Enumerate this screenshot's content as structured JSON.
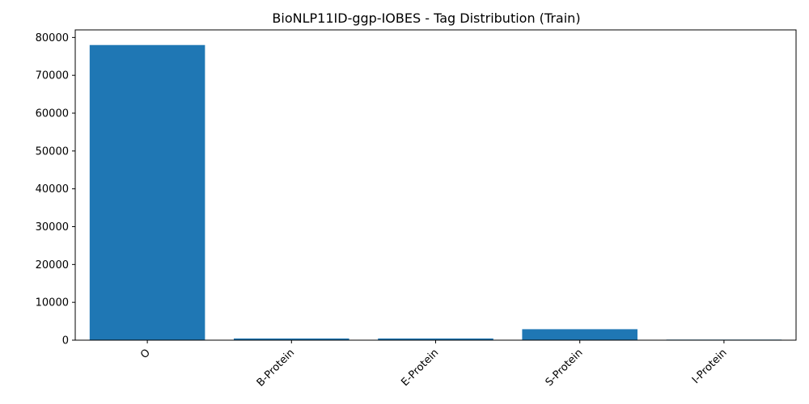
{
  "chart_data": {
    "type": "bar",
    "title": "BioNLP11ID-ggp-IOBES - Tag Distribution (Train)",
    "xlabel": "",
    "ylabel": "",
    "categories": [
      "O",
      "B-Protein",
      "E-Protein",
      "S-Protein",
      "I-Protein"
    ],
    "values": [
      78000,
      450,
      450,
      2900,
      150
    ],
    "ylim": [
      0,
      82000
    ],
    "yticks": [
      0,
      10000,
      20000,
      30000,
      40000,
      50000,
      60000,
      70000,
      80000
    ],
    "ytick_labels": [
      "0",
      "10000",
      "20000",
      "30000",
      "40000",
      "50000",
      "60000",
      "70000",
      "80000"
    ],
    "grid": false,
    "legend": "none",
    "x_tick_rotation_deg": 45,
    "bar_color": "#1f77b4"
  }
}
